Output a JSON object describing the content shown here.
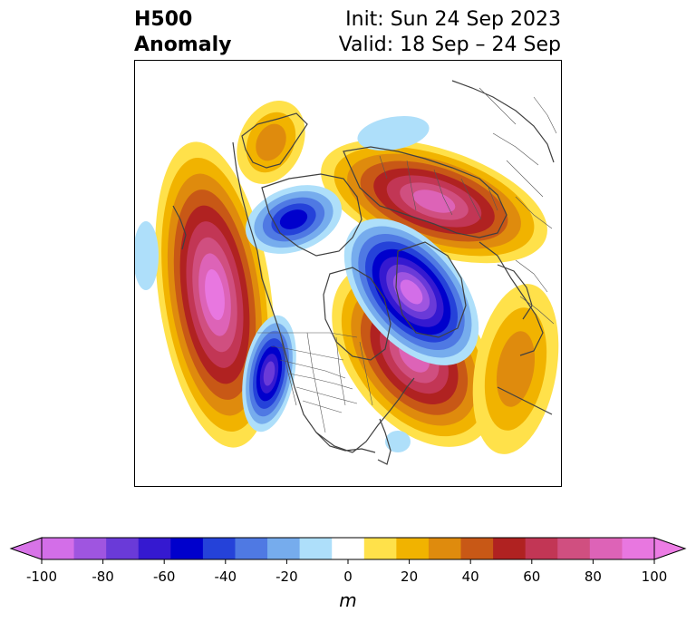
{
  "title": {
    "left_line1": "H500",
    "left_line2": "Anomaly",
    "right_line1": "Init: Sun 24 Sep 2023",
    "right_line2": "Valid: 18 Sep – 24 Sep"
  },
  "map": {
    "projection": "north-polar-stereographic",
    "field": "500 hPa geopotential height anomaly",
    "anomaly_centers": [
      {
        "sign": "positive",
        "location": "NE Pacific / Gulf of Alaska",
        "peak": 100
      },
      {
        "sign": "positive",
        "location": "Central Canada / Hudson Bay",
        "peak": 90
      },
      {
        "sign": "positive",
        "location": "Siberia",
        "peak": 85
      },
      {
        "sign": "negative",
        "location": "Greenland / N Atlantic",
        "peak": -95
      },
      {
        "sign": "negative",
        "location": "US Pacific Northwest",
        "peak": -80
      },
      {
        "sign": "negative",
        "location": "Bering Strait / Alaska",
        "peak": -50
      }
    ]
  },
  "colorbar": {
    "label": "m",
    "ticks": [
      "-100",
      "-80",
      "-60",
      "-40",
      "-20",
      "0",
      "20",
      "40",
      "60",
      "80",
      "100"
    ],
    "levels": [
      -100,
      -90,
      -80,
      -70,
      -60,
      -50,
      -40,
      -30,
      -20,
      -10,
      10,
      20,
      30,
      40,
      50,
      60,
      70,
      80,
      90,
      100
    ],
    "colors": [
      "#d36ee8",
      "#9f55e0",
      "#6a3ad8",
      "#3519d0",
      "#0000cc",
      "#2542d9",
      "#4f79e3",
      "#76aced",
      "#aedffa",
      "#ffffff",
      "#ffe14a",
      "#f1b300",
      "#df8b0d",
      "#c85816",
      "#b02221",
      "#c23655",
      "#d04f80",
      "#dd63b7",
      "#e877e0"
    ],
    "under_color": "#d874e8",
    "over_color": "#ec7ce4"
  }
}
